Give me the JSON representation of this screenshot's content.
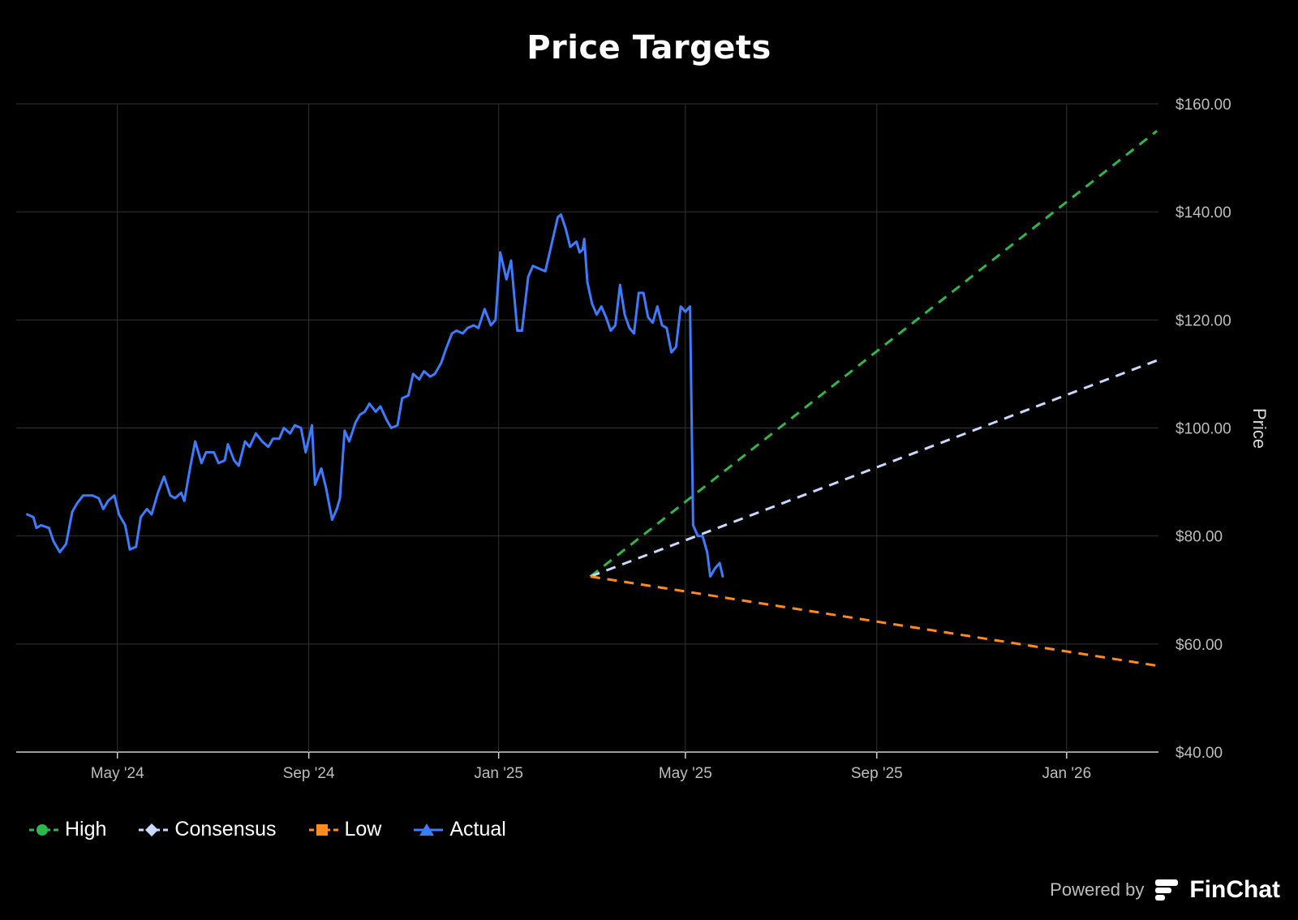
{
  "chart_data": {
    "type": "line",
    "title": "Price Targets",
    "ylabel": "Price",
    "xlabel": "",
    "ylim": [
      40,
      160
    ],
    "yticks": [
      "$40.00",
      "$60.00",
      "$80.00",
      "$100.00",
      "$120.00",
      "$140.00",
      "$160.00"
    ],
    "xlim": [
      "2024-02-26",
      "2026-03-01"
    ],
    "xticks": [
      {
        "date": "2024-05-01",
        "label": "May '24"
      },
      {
        "date": "2024-09-01",
        "label": "Sep '24"
      },
      {
        "date": "2025-01-01",
        "label": "Jan '25"
      },
      {
        "date": "2025-05-01",
        "label": "May '25"
      },
      {
        "date": "2025-09-01",
        "label": "Sep '25"
      },
      {
        "date": "2026-01-01",
        "label": "Jan '26"
      }
    ],
    "grid": true,
    "legend_position": "bottom-left",
    "series": [
      {
        "name": "High",
        "style": "dashed",
        "marker": "circle",
        "color": "#2eb84b",
        "points": [
          [
            "2025-03-01",
            72.5
          ],
          [
            "2026-02-28",
            155
          ]
        ]
      },
      {
        "name": "Consensus",
        "style": "dashed",
        "marker": "diamond",
        "color": "#c9d9ff",
        "points": [
          [
            "2025-03-01",
            72.5
          ],
          [
            "2026-02-28",
            112.5
          ]
        ]
      },
      {
        "name": "Low",
        "style": "dashed",
        "marker": "square",
        "color": "#ff8a1f",
        "points": [
          [
            "2025-03-01",
            72.5
          ],
          [
            "2026-02-28",
            56
          ]
        ]
      },
      {
        "name": "Actual",
        "style": "solid",
        "marker": "triangle",
        "color": "#3d7bff",
        "points": [
          [
            "2024-03-04",
            84
          ],
          [
            "2024-03-08",
            83.5
          ],
          [
            "2024-03-10",
            81.5
          ],
          [
            "2024-03-13",
            82
          ],
          [
            "2024-03-18",
            81.5
          ],
          [
            "2024-03-21",
            79
          ],
          [
            "2024-03-25",
            77
          ],
          [
            "2024-03-29",
            78.5
          ],
          [
            "2024-04-02",
            84.5
          ],
          [
            "2024-04-05",
            86
          ],
          [
            "2024-04-09",
            87.5
          ],
          [
            "2024-04-15",
            87.5
          ],
          [
            "2024-04-19",
            87
          ],
          [
            "2024-04-22",
            85
          ],
          [
            "2024-04-25",
            86.5
          ],
          [
            "2024-04-29",
            87.5
          ],
          [
            "2024-05-02",
            84
          ],
          [
            "2024-05-06",
            82
          ],
          [
            "2024-05-09",
            77.5
          ],
          [
            "2024-05-13",
            78
          ],
          [
            "2024-05-16",
            83.5
          ],
          [
            "2024-05-20",
            85
          ],
          [
            "2024-05-23",
            84
          ],
          [
            "2024-05-27",
            88
          ],
          [
            "2024-05-31",
            91
          ],
          [
            "2024-06-04",
            87.5
          ],
          [
            "2024-06-07",
            87
          ],
          [
            "2024-06-11",
            88
          ],
          [
            "2024-06-13",
            86.5
          ],
          [
            "2024-06-17",
            93
          ],
          [
            "2024-06-20",
            97.5
          ],
          [
            "2024-06-24",
            93.5
          ],
          [
            "2024-06-27",
            95.5
          ],
          [
            "2024-07-02",
            95.5
          ],
          [
            "2024-07-05",
            93.5
          ],
          [
            "2024-07-09",
            94
          ],
          [
            "2024-07-11",
            97
          ],
          [
            "2024-07-15",
            94
          ],
          [
            "2024-07-18",
            93
          ],
          [
            "2024-07-22",
            97.5
          ],
          [
            "2024-07-25",
            96.5
          ],
          [
            "2024-07-29",
            99
          ],
          [
            "2024-08-02",
            97.5
          ],
          [
            "2024-08-06",
            96.5
          ],
          [
            "2024-08-09",
            98
          ],
          [
            "2024-08-13",
            98
          ],
          [
            "2024-08-16",
            100
          ],
          [
            "2024-08-20",
            99
          ],
          [
            "2024-08-23",
            100.5
          ],
          [
            "2024-08-27",
            100
          ],
          [
            "2024-08-30",
            95.5
          ],
          [
            "2024-09-03",
            100.5
          ],
          [
            "2024-09-05",
            89.5
          ],
          [
            "2024-09-09",
            92.5
          ],
          [
            "2024-09-12",
            89
          ],
          [
            "2024-09-16",
            83
          ],
          [
            "2024-09-19",
            85
          ],
          [
            "2024-09-21",
            87
          ],
          [
            "2024-09-24",
            99.5
          ],
          [
            "2024-09-27",
            97.5
          ],
          [
            "2024-10-01",
            101
          ],
          [
            "2024-10-04",
            102.5
          ],
          [
            "2024-10-07",
            103
          ],
          [
            "2024-10-10",
            104.5
          ],
          [
            "2024-10-14",
            103
          ],
          [
            "2024-10-17",
            104
          ],
          [
            "2024-10-21",
            101.5
          ],
          [
            "2024-10-24",
            100
          ],
          [
            "2024-10-28",
            100.5
          ],
          [
            "2024-10-31",
            105.5
          ],
          [
            "2024-11-04",
            106
          ],
          [
            "2024-11-07",
            110
          ],
          [
            "2024-11-11",
            109
          ],
          [
            "2024-11-14",
            110.5
          ],
          [
            "2024-11-18",
            109.5
          ],
          [
            "2024-11-21",
            110
          ],
          [
            "2024-11-25",
            112
          ],
          [
            "2024-11-28",
            114.5
          ],
          [
            "2024-12-02",
            117.5
          ],
          [
            "2024-12-05",
            118
          ],
          [
            "2024-12-09",
            117.5
          ],
          [
            "2024-12-12",
            118.5
          ],
          [
            "2024-12-16",
            119
          ],
          [
            "2024-12-19",
            118.5
          ],
          [
            "2024-12-23",
            122
          ],
          [
            "2024-12-27",
            119
          ],
          [
            "2024-12-30",
            120
          ],
          [
            "2025-01-02",
            132.5
          ],
          [
            "2025-01-06",
            127.5
          ],
          [
            "2025-01-09",
            131
          ],
          [
            "2025-01-13",
            118
          ],
          [
            "2025-01-16",
            118
          ],
          [
            "2025-01-20",
            128
          ],
          [
            "2025-01-23",
            130
          ],
          [
            "2025-01-27",
            129.5
          ],
          [
            "2025-01-31",
            129
          ],
          [
            "2025-02-04",
            134
          ],
          [
            "2025-02-08",
            139
          ],
          [
            "2025-02-10",
            139.5
          ],
          [
            "2025-02-13",
            137
          ],
          [
            "2025-02-16",
            133.5
          ],
          [
            "2025-02-20",
            134.5
          ],
          [
            "2025-02-22",
            132.5
          ],
          [
            "2025-02-24",
            133
          ],
          [
            "2025-02-25",
            135
          ],
          [
            "2025-02-27",
            127
          ],
          [
            "2025-03-02",
            123
          ],
          [
            "2025-03-05",
            121
          ],
          [
            "2025-03-08",
            122.5
          ],
          [
            "2025-03-11",
            120.5
          ],
          [
            "2025-03-14",
            118
          ],
          [
            "2025-03-17",
            119
          ],
          [
            "2025-03-20",
            126.5
          ],
          [
            "2025-03-23",
            121
          ],
          [
            "2025-03-26",
            118.5
          ],
          [
            "2025-03-29",
            117.5
          ],
          [
            "2025-04-01",
            125
          ],
          [
            "2025-04-04",
            125
          ],
          [
            "2025-04-07",
            120.5
          ],
          [
            "2025-04-10",
            119.5
          ],
          [
            "2025-04-13",
            122.5
          ],
          [
            "2025-04-16",
            119
          ],
          [
            "2025-04-19",
            118.5
          ],
          [
            "2025-04-22",
            114
          ],
          [
            "2025-04-25",
            115
          ],
          [
            "2025-04-28",
            122.5
          ],
          [
            "2025-05-01",
            121.5
          ],
          [
            "2025-05-04",
            122.5
          ],
          [
            "2025-05-06",
            82
          ],
          [
            "2025-05-09",
            80
          ],
          [
            "2025-05-12",
            80
          ],
          [
            "2025-05-15",
            77
          ],
          [
            "2025-05-17",
            72.5
          ],
          [
            "2025-05-20",
            74
          ],
          [
            "2025-05-23",
            75
          ],
          [
            "2025-05-25",
            72.5
          ]
        ]
      }
    ]
  },
  "legend": {
    "items": [
      {
        "label": "High",
        "color": "#2eb84b",
        "icon": "circle"
      },
      {
        "label": "Consensus",
        "color": "#c9d9ff",
        "icon": "diamond"
      },
      {
        "label": "Low",
        "color": "#ff8a1f",
        "icon": "square"
      },
      {
        "label": "Actual",
        "color": "#3d7bff",
        "icon": "triangle"
      }
    ]
  },
  "branding": {
    "powered_by": "Powered by",
    "brand": "FinChat",
    "logo_icon": "finchat-logo-icon"
  }
}
